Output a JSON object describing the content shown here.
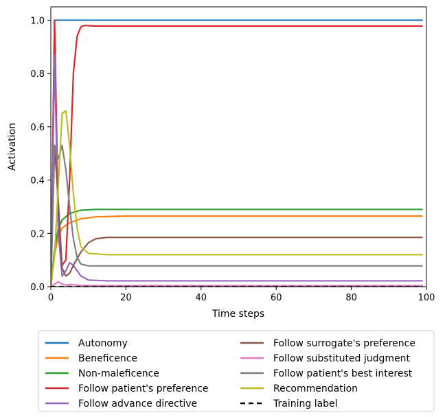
{
  "chart_data": {
    "type": "line",
    "xlabel": "Time steps",
    "ylabel": "Activation",
    "xlim": [
      0,
      100
    ],
    "ylim": [
      0,
      1.05
    ],
    "x_ticks": [
      {
        "value": 0,
        "label": "0"
      },
      {
        "value": 20,
        "label": "20"
      },
      {
        "value": 40,
        "label": "40"
      },
      {
        "value": 60,
        "label": "60"
      },
      {
        "value": 80,
        "label": "80"
      },
      {
        "value": 100,
        "label": "100"
      }
    ],
    "y_ticks": [
      {
        "value": 0.0,
        "label": "0.0"
      },
      {
        "value": 0.2,
        "label": "0.2"
      },
      {
        "value": 0.4,
        "label": "0.4"
      },
      {
        "value": 0.6,
        "label": "0.6"
      },
      {
        "value": 0.8,
        "label": "0.8"
      },
      {
        "value": 1.0,
        "label": "1.0"
      }
    ],
    "grid": false,
    "legend_position": "below",
    "legend_columns": 2,
    "series": [
      {
        "name": "Autonomy",
        "color": "#1f77b4",
        "dash": "solid",
        "points": [
          [
            0,
            0
          ],
          [
            1,
            1.0
          ],
          [
            2,
            1.0
          ],
          [
            5,
            1.0
          ],
          [
            20,
            1.0
          ],
          [
            99,
            1.0
          ]
        ]
      },
      {
        "name": "Beneficence",
        "color": "#ff7f0e",
        "dash": "solid",
        "points": [
          [
            0,
            0
          ],
          [
            1,
            0.12
          ],
          [
            2,
            0.19
          ],
          [
            3,
            0.22
          ],
          [
            5,
            0.24
          ],
          [
            8,
            0.255
          ],
          [
            12,
            0.262
          ],
          [
            20,
            0.265
          ],
          [
            99,
            0.265
          ]
        ]
      },
      {
        "name": "Non-maleficence",
        "color": "#2ca02c",
        "dash": "solid",
        "points": [
          [
            0,
            0
          ],
          [
            1,
            0.14
          ],
          [
            2,
            0.22
          ],
          [
            3,
            0.25
          ],
          [
            5,
            0.275
          ],
          [
            8,
            0.287
          ],
          [
            12,
            0.29
          ],
          [
            20,
            0.29
          ],
          [
            99,
            0.29
          ]
        ]
      },
      {
        "name": "Follow patient's preference",
        "color": "#d62728",
        "dash": "solid",
        "points": [
          [
            0,
            0
          ],
          [
            1,
            1.0
          ],
          [
            2,
            0.24
          ],
          [
            3,
            0.08
          ],
          [
            4,
            0.1
          ],
          [
            5,
            0.4
          ],
          [
            6,
            0.8
          ],
          [
            7,
            0.94
          ],
          [
            8,
            0.975
          ],
          [
            9,
            0.98
          ],
          [
            12,
            0.978
          ],
          [
            99,
            0.978
          ]
        ]
      },
      {
        "name": "Follow advance directive",
        "color": "#9467bd",
        "dash": "solid",
        "points": [
          [
            0,
            0
          ],
          [
            1,
            0.87
          ],
          [
            2,
            0.2
          ],
          [
            3,
            0.04
          ],
          [
            4,
            0.06
          ],
          [
            5,
            0.09
          ],
          [
            6,
            0.08
          ],
          [
            7,
            0.06
          ],
          [
            8,
            0.04
          ],
          [
            10,
            0.025
          ],
          [
            15,
            0.022
          ],
          [
            99,
            0.022
          ]
        ]
      },
      {
        "name": "Follow surrogate's preference",
        "color": "#8c564b",
        "dash": "solid",
        "points": [
          [
            0,
            0
          ],
          [
            1,
            0.53
          ],
          [
            2,
            0.32
          ],
          [
            3,
            0.07
          ],
          [
            4,
            0.04
          ],
          [
            5,
            0.05
          ],
          [
            6,
            0.08
          ],
          [
            8,
            0.13
          ],
          [
            10,
            0.165
          ],
          [
            12,
            0.18
          ],
          [
            15,
            0.185
          ],
          [
            99,
            0.185
          ]
        ]
      },
      {
        "name": "Follow substituted judgment",
        "color": "#e377c2",
        "dash": "solid",
        "points": [
          [
            0,
            0
          ],
          [
            1,
            0.01
          ],
          [
            2,
            0.018
          ],
          [
            3,
            0.01
          ],
          [
            4,
            0.006
          ],
          [
            5,
            0.008
          ],
          [
            6,
            0.007
          ],
          [
            8,
            0.005
          ],
          [
            12,
            0.004
          ],
          [
            99,
            0.004
          ]
        ]
      },
      {
        "name": "Follow patient's best interest",
        "color": "#7f7f7f",
        "dash": "solid",
        "points": [
          [
            0,
            0
          ],
          [
            1,
            0.53
          ],
          [
            2,
            0.48
          ],
          [
            3,
            0.53
          ],
          [
            4,
            0.44
          ],
          [
            5,
            0.3
          ],
          [
            6,
            0.18
          ],
          [
            7,
            0.11
          ],
          [
            8,
            0.085
          ],
          [
            10,
            0.078
          ],
          [
            15,
            0.078
          ],
          [
            99,
            0.078
          ]
        ]
      },
      {
        "name": "Recommendation",
        "color": "#bcbd22",
        "dash": "solid",
        "points": [
          [
            0,
            0
          ],
          [
            1,
            0.12
          ],
          [
            2,
            0.38
          ],
          [
            3,
            0.65
          ],
          [
            4,
            0.66
          ],
          [
            5,
            0.53
          ],
          [
            6,
            0.35
          ],
          [
            7,
            0.22
          ],
          [
            8,
            0.15
          ],
          [
            10,
            0.125
          ],
          [
            15,
            0.12
          ],
          [
            99,
            0.12
          ]
        ]
      },
      {
        "name": "Training label",
        "color": "#000000",
        "dash": "dashed",
        "points": [
          [
            0,
            0
          ],
          [
            99,
            0
          ]
        ]
      }
    ]
  }
}
